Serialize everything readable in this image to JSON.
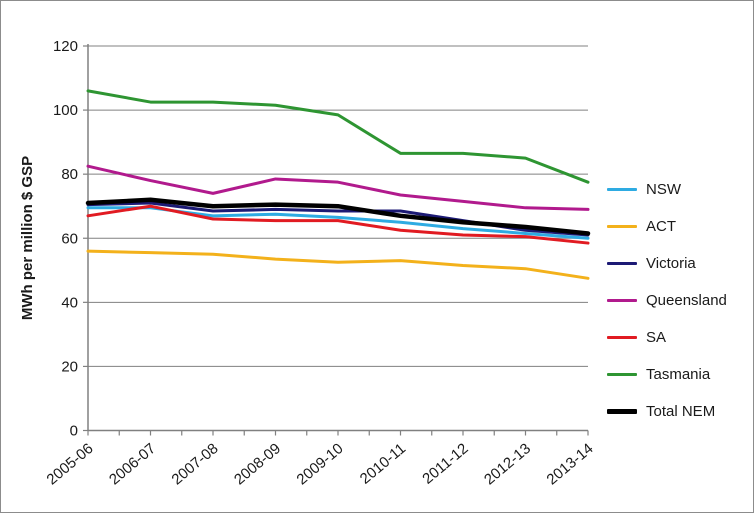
{
  "figure": {
    "background": "#ffffff",
    "border_color": "#8c8c8c",
    "gridline_color": "#808080",
    "axis_color": "#808080",
    "text_color": "#1a1a1a"
  },
  "chart_data": {
    "type": "line",
    "title": "",
    "xlabel": "",
    "ylabel": "MWh per million $ GSP",
    "ylim": [
      0,
      120
    ],
    "ytick_step": 20,
    "grid": "horizontal",
    "legend_position": "right",
    "categories": [
      "2005-06",
      "2006-07",
      "2007-08",
      "2008-09",
      "2009-10",
      "2010-11",
      "2011-12",
      "2012-13",
      "2013-14"
    ],
    "series": [
      {
        "name": "NSW",
        "color": "#2eabe2",
        "width": 3,
        "values": [
          69.5,
          69.5,
          67,
          67.5,
          66.5,
          65,
          63,
          61.5,
          60
        ]
      },
      {
        "name": "ACT",
        "color": "#f3b11b",
        "width": 3,
        "values": [
          56,
          55.5,
          55,
          53.5,
          52.5,
          53,
          51.5,
          50.5,
          47.5
        ]
      },
      {
        "name": "Victoria",
        "color": "#1c1a75",
        "width": 3,
        "values": [
          70.5,
          71,
          68.5,
          69,
          68.5,
          68.5,
          65.5,
          62.5,
          61
        ]
      },
      {
        "name": "Queensland",
        "color": "#b11a8d",
        "width": 3,
        "values": [
          82.5,
          78,
          74,
          78.5,
          77.5,
          73.5,
          71.5,
          69.5,
          69
        ]
      },
      {
        "name": "SA",
        "color": "#e11b22",
        "width": 3,
        "values": [
          67,
          70,
          66,
          65.5,
          65.5,
          62.5,
          61,
          60.5,
          58.5
        ]
      },
      {
        "name": "Tasmania",
        "color": "#2e9532",
        "width": 3,
        "values": [
          106,
          102.5,
          102.5,
          101.5,
          98.5,
          86.5,
          86.5,
          85,
          77.5
        ]
      },
      {
        "name": "Total NEM",
        "color": "#000000",
        "width": 4.5,
        "values": [
          71,
          72,
          70,
          70.5,
          70,
          67,
          65,
          63.5,
          61.5
        ]
      }
    ]
  }
}
